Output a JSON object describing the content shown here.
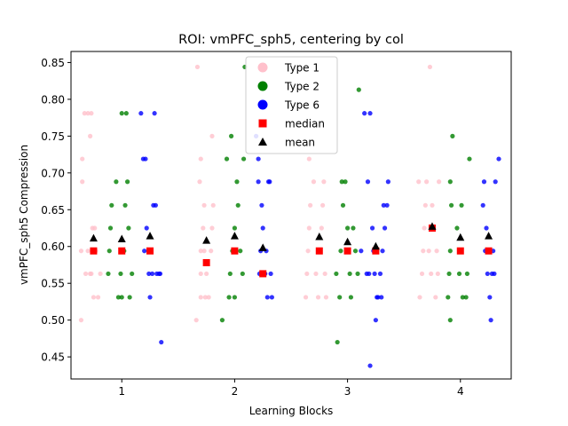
{
  "chart_data": {
    "type": "scatter",
    "title": "ROI: vmPFC_sph5, centering by col",
    "xlabel": "Learning Blocks",
    "ylabel": "vmPFC_sph5 Compression",
    "xlim": [
      0.55,
      4.45
    ],
    "ylim": [
      0.42,
      0.865
    ],
    "x_ticks": [
      1,
      2,
      3,
      4
    ],
    "y_ticks": [
      0.45,
      0.5,
      0.55,
      0.6,
      0.65,
      0.7,
      0.75,
      0.8,
      0.85
    ],
    "grid": false,
    "legend_position": "top-center",
    "legend": [
      "Type 1",
      "Type 2",
      "Type 6",
      "median",
      "mean"
    ],
    "colors": {
      "type1": "#ffc0cb",
      "type2": "#008000",
      "type6": "#0000ff",
      "median": "#ff0000",
      "mean": "#000000"
    },
    "series": [
      {
        "name": "Type 1",
        "marker": "dot",
        "points": [
          [
            0.64,
            0.5
          ],
          [
            0.64,
            0.594
          ],
          [
            0.65,
            0.688
          ],
          [
            0.65,
            0.719
          ],
          [
            0.67,
            0.781
          ],
          [
            0.7,
            0.781
          ],
          [
            0.72,
            0.563
          ],
          [
            0.74,
            0.625
          ],
          [
            0.75,
            0.531
          ],
          [
            0.73,
            0.563
          ],
          [
            0.72,
            0.75
          ],
          [
            0.73,
            0.781
          ],
          [
            0.76,
            0.625
          ],
          [
            0.77,
            0.594
          ],
          [
            0.79,
            0.531
          ],
          [
            0.81,
            0.563
          ],
          [
            0.68,
            0.563
          ],
          [
            0.7,
            0.594
          ],
          [
            1.67,
            0.844
          ],
          [
            1.66,
            0.5
          ],
          [
            1.7,
            0.531
          ],
          [
            1.7,
            0.563
          ],
          [
            1.7,
            0.594
          ],
          [
            1.72,
            0.625
          ],
          [
            1.73,
            0.656
          ],
          [
            1.69,
            0.688
          ],
          [
            1.7,
            0.719
          ],
          [
            1.75,
            0.563
          ],
          [
            1.77,
            0.531
          ],
          [
            1.79,
            0.594
          ],
          [
            1.8,
            0.625
          ],
          [
            1.81,
            0.656
          ],
          [
            1.8,
            0.75
          ],
          [
            1.73,
            0.594
          ],
          [
            1.74,
            0.531
          ],
          [
            2.63,
            0.531
          ],
          [
            2.64,
            0.563
          ],
          [
            2.65,
            0.594
          ],
          [
            2.66,
            0.625
          ],
          [
            2.67,
            0.656
          ],
          [
            2.66,
            0.719
          ],
          [
            2.7,
            0.688
          ],
          [
            2.72,
            0.563
          ],
          [
            2.74,
            0.531
          ],
          [
            2.76,
            0.594
          ],
          [
            2.77,
            0.625
          ],
          [
            2.78,
            0.656
          ],
          [
            2.79,
            0.688
          ],
          [
            2.8,
            0.563
          ],
          [
            2.81,
            0.531
          ],
          [
            3.63,
            0.688
          ],
          [
            3.64,
            0.531
          ],
          [
            3.66,
            0.563
          ],
          [
            3.67,
            0.594
          ],
          [
            3.68,
            0.625
          ],
          [
            3.69,
            0.656
          ],
          [
            3.7,
            0.688
          ],
          [
            3.72,
            0.594
          ],
          [
            3.74,
            0.563
          ],
          [
            3.73,
            0.844
          ],
          [
            3.76,
            0.625
          ],
          [
            3.78,
            0.531
          ],
          [
            3.79,
            0.594
          ],
          [
            3.8,
            0.563
          ],
          [
            3.81,
            0.688
          ],
          [
            3.75,
            0.656
          ]
        ]
      },
      {
        "name": "Type 2",
        "marker": "dot",
        "points": [
          [
            0.88,
            0.563
          ],
          [
            0.89,
            0.594
          ],
          [
            0.9,
            0.625
          ],
          [
            0.91,
            0.656
          ],
          [
            0.95,
            0.688
          ],
          [
            0.97,
            0.531
          ],
          [
            0.99,
            0.563
          ],
          [
            1.0,
            0.781
          ],
          [
            1.02,
            0.594
          ],
          [
            1.03,
            0.656
          ],
          [
            1.04,
            0.781
          ],
          [
            1.05,
            0.688
          ],
          [
            1.06,
            0.625
          ],
          [
            1.07,
            0.531
          ],
          [
            1.09,
            0.563
          ],
          [
            1.0,
            0.531
          ],
          [
            1.89,
            0.5
          ],
          [
            1.93,
            0.719
          ],
          [
            1.95,
            0.531
          ],
          [
            1.96,
            0.563
          ],
          [
            1.97,
            0.75
          ],
          [
            1.98,
            0.594
          ],
          [
            2.0,
            0.625
          ],
          [
            2.02,
            0.688
          ],
          [
            2.03,
            0.656
          ],
          [
            2.05,
            0.594
          ],
          [
            2.07,
            0.563
          ],
          [
            2.08,
            0.719
          ],
          [
            2.09,
            0.844
          ],
          [
            2.0,
            0.531
          ],
          [
            2.9,
            0.563
          ],
          [
            2.91,
            0.47
          ],
          [
            2.93,
            0.531
          ],
          [
            2.94,
            0.594
          ],
          [
            2.95,
            0.688
          ],
          [
            2.96,
            0.656
          ],
          [
            2.98,
            0.688
          ],
          [
            2.99,
            0.594
          ],
          [
            3.0,
            0.625
          ],
          [
            3.02,
            0.563
          ],
          [
            3.03,
            0.531
          ],
          [
            3.05,
            0.625
          ],
          [
            3.07,
            0.594
          ],
          [
            3.09,
            0.563
          ],
          [
            3.1,
            0.813
          ],
          [
            3.89,
            0.531
          ],
          [
            3.9,
            0.563
          ],
          [
            3.91,
            0.594
          ],
          [
            3.92,
            0.656
          ],
          [
            3.91,
            0.688
          ],
          [
            3.93,
            0.75
          ],
          [
            3.91,
            0.5
          ],
          [
            3.97,
            0.625
          ],
          [
            3.99,
            0.563
          ],
          [
            4.0,
            0.594
          ],
          [
            4.01,
            0.656
          ],
          [
            4.02,
            0.531
          ],
          [
            4.05,
            0.531
          ],
          [
            4.06,
            0.563
          ],
          [
            4.08,
            0.719
          ]
        ]
      },
      {
        "name": "Type 6",
        "marker": "dot",
        "points": [
          [
            1.17,
            0.781
          ],
          [
            1.19,
            0.719
          ],
          [
            1.2,
            0.594
          ],
          [
            1.21,
            0.719
          ],
          [
            1.22,
            0.625
          ],
          [
            1.24,
            0.563
          ],
          [
            1.25,
            0.531
          ],
          [
            1.26,
            0.594
          ],
          [
            1.27,
            0.563
          ],
          [
            1.28,
            0.656
          ],
          [
            1.29,
            0.781
          ],
          [
            1.3,
            0.656
          ],
          [
            1.31,
            0.563
          ],
          [
            1.34,
            0.563
          ],
          [
            1.35,
            0.47
          ],
          [
            1.33,
            0.563
          ],
          [
            2.19,
            0.75
          ],
          [
            2.21,
            0.719
          ],
          [
            2.21,
            0.688
          ],
          [
            2.22,
            0.563
          ],
          [
            2.23,
            0.594
          ],
          [
            2.24,
            0.656
          ],
          [
            2.25,
            0.625
          ],
          [
            2.27,
            0.563
          ],
          [
            2.28,
            0.594
          ],
          [
            2.29,
            0.531
          ],
          [
            2.3,
            0.688
          ],
          [
            2.31,
            0.688
          ],
          [
            2.32,
            0.563
          ],
          [
            2.33,
            0.531
          ],
          [
            3.12,
            0.594
          ],
          [
            3.15,
            0.781
          ],
          [
            3.17,
            0.563
          ],
          [
            3.18,
            0.688
          ],
          [
            3.19,
            0.563
          ],
          [
            3.2,
            0.781
          ],
          [
            3.2,
            0.438
          ],
          [
            3.22,
            0.625
          ],
          [
            3.23,
            0.594
          ],
          [
            3.24,
            0.563
          ],
          [
            3.25,
            0.5
          ],
          [
            3.26,
            0.531
          ],
          [
            3.27,
            0.531
          ],
          [
            3.29,
            0.563
          ],
          [
            3.3,
            0.531
          ],
          [
            3.31,
            0.594
          ],
          [
            3.32,
            0.656
          ],
          [
            3.33,
            0.625
          ],
          [
            3.35,
            0.656
          ],
          [
            3.36,
            0.688
          ],
          [
            4.2,
            0.656
          ],
          [
            4.21,
            0.688
          ],
          [
            4.22,
            0.594
          ],
          [
            4.23,
            0.625
          ],
          [
            4.24,
            0.563
          ],
          [
            4.25,
            0.594
          ],
          [
            4.26,
            0.531
          ],
          [
            4.27,
            0.5
          ],
          [
            4.28,
            0.563
          ],
          [
            4.29,
            0.594
          ],
          [
            4.3,
            0.563
          ],
          [
            4.31,
            0.688
          ],
          [
            4.34,
            0.719
          ]
        ]
      },
      {
        "name": "median",
        "marker": "square",
        "points": [
          [
            0.75,
            0.594
          ],
          [
            1.0,
            0.594
          ],
          [
            1.25,
            0.594
          ],
          [
            1.75,
            0.578
          ],
          [
            2.0,
            0.594
          ],
          [
            2.25,
            0.563
          ],
          [
            2.75,
            0.594
          ],
          [
            3.0,
            0.594
          ],
          [
            3.25,
            0.594
          ],
          [
            3.75,
            0.625
          ],
          [
            4.0,
            0.594
          ],
          [
            4.25,
            0.594
          ]
        ]
      },
      {
        "name": "mean",
        "marker": "triangle",
        "points": [
          [
            0.75,
            0.611
          ],
          [
            1.0,
            0.61
          ],
          [
            1.25,
            0.614
          ],
          [
            1.75,
            0.608
          ],
          [
            2.0,
            0.614
          ],
          [
            2.25,
            0.598
          ],
          [
            2.75,
            0.613
          ],
          [
            3.0,
            0.606
          ],
          [
            3.25,
            0.6
          ],
          [
            3.75,
            0.627
          ],
          [
            4.0,
            0.612
          ],
          [
            4.25,
            0.614
          ]
        ]
      }
    ]
  }
}
